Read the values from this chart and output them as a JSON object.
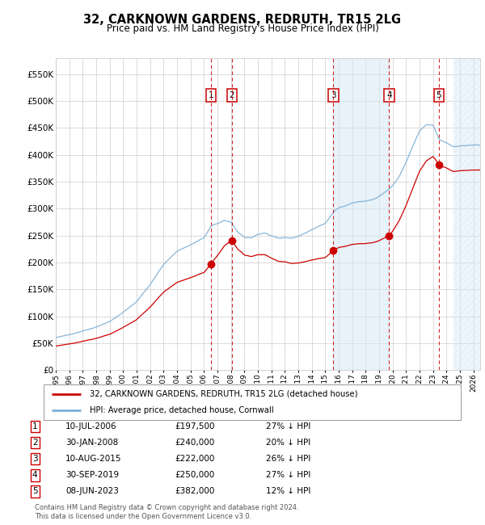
{
  "title": "32, CARKNOWN GARDENS, REDRUTH, TR15 2LG",
  "subtitle": "Price paid vs. HM Land Registry's House Price Index (HPI)",
  "xlim_start": 1995.0,
  "xlim_end": 2026.5,
  "ylim": [
    0,
    580000
  ],
  "yticks": [
    0,
    50000,
    100000,
    150000,
    200000,
    250000,
    300000,
    350000,
    400000,
    450000,
    500000,
    550000
  ],
  "ytick_labels": [
    "£0",
    "£50K",
    "£100K",
    "£150K",
    "£200K",
    "£250K",
    "£300K",
    "£350K",
    "£400K",
    "£450K",
    "£500K",
    "£550K"
  ],
  "transactions": [
    {
      "label": "1",
      "date_f": 2006.53,
      "price": 197500,
      "date_str": "10-JUL-2006",
      "pct": "27%",
      "dir": "↓"
    },
    {
      "label": "2",
      "date_f": 2008.08,
      "price": 240000,
      "date_str": "30-JAN-2008",
      "pct": "20%",
      "dir": "↓"
    },
    {
      "label": "3",
      "date_f": 2015.61,
      "price": 222000,
      "date_str": "10-AUG-2015",
      "pct": "26%",
      "dir": "↓"
    },
    {
      "label": "4",
      "date_f": 2019.75,
      "price": 250000,
      "date_str": "30-SEP-2019",
      "pct": "27%",
      "dir": "↓"
    },
    {
      "label": "5",
      "date_f": 2023.44,
      "price": 382000,
      "date_str": "08-JUN-2023",
      "pct": "12%",
      "dir": "↓"
    }
  ],
  "hpi_color": "#7aaed6",
  "price_color": "#cc0000",
  "vline_color": "#cc0000",
  "box_color": "#cc0000",
  "shade_color": "#d6e8f5",
  "footer": "Contains HM Land Registry data © Crown copyright and database right 2024.\nThis data is licensed under the Open Government Licence v3.0.",
  "legend_label_red": "32, CARKNOWN GARDENS, REDRUTH, TR15 2LG (detached house)",
  "legend_label_blue": "HPI: Average price, detached house, Cornwall",
  "background_color": "#ffffff",
  "grid_color": "#cccccc"
}
